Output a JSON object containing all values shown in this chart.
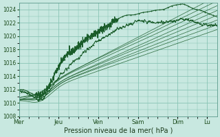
{
  "background_color": "#c8e8e0",
  "plot_bg_color": "#c8e8e0",
  "grid_color": "#88c4b4",
  "line_color": "#1a5c2a",
  "title": "Pression niveau de la mer( hPa )",
  "ylim": [
    1008,
    1025
  ],
  "yticks": [
    1008,
    1010,
    1012,
    1014,
    1016,
    1018,
    1020,
    1022,
    1024
  ],
  "day_labels": [
    "Mer",
    "Jeu",
    "Ven",
    "Sam",
    "Dim",
    "Lu"
  ],
  "day_positions": [
    0,
    48,
    96,
    144,
    192,
    228
  ],
  "total_points": 240,
  "num_ensemble": 8
}
